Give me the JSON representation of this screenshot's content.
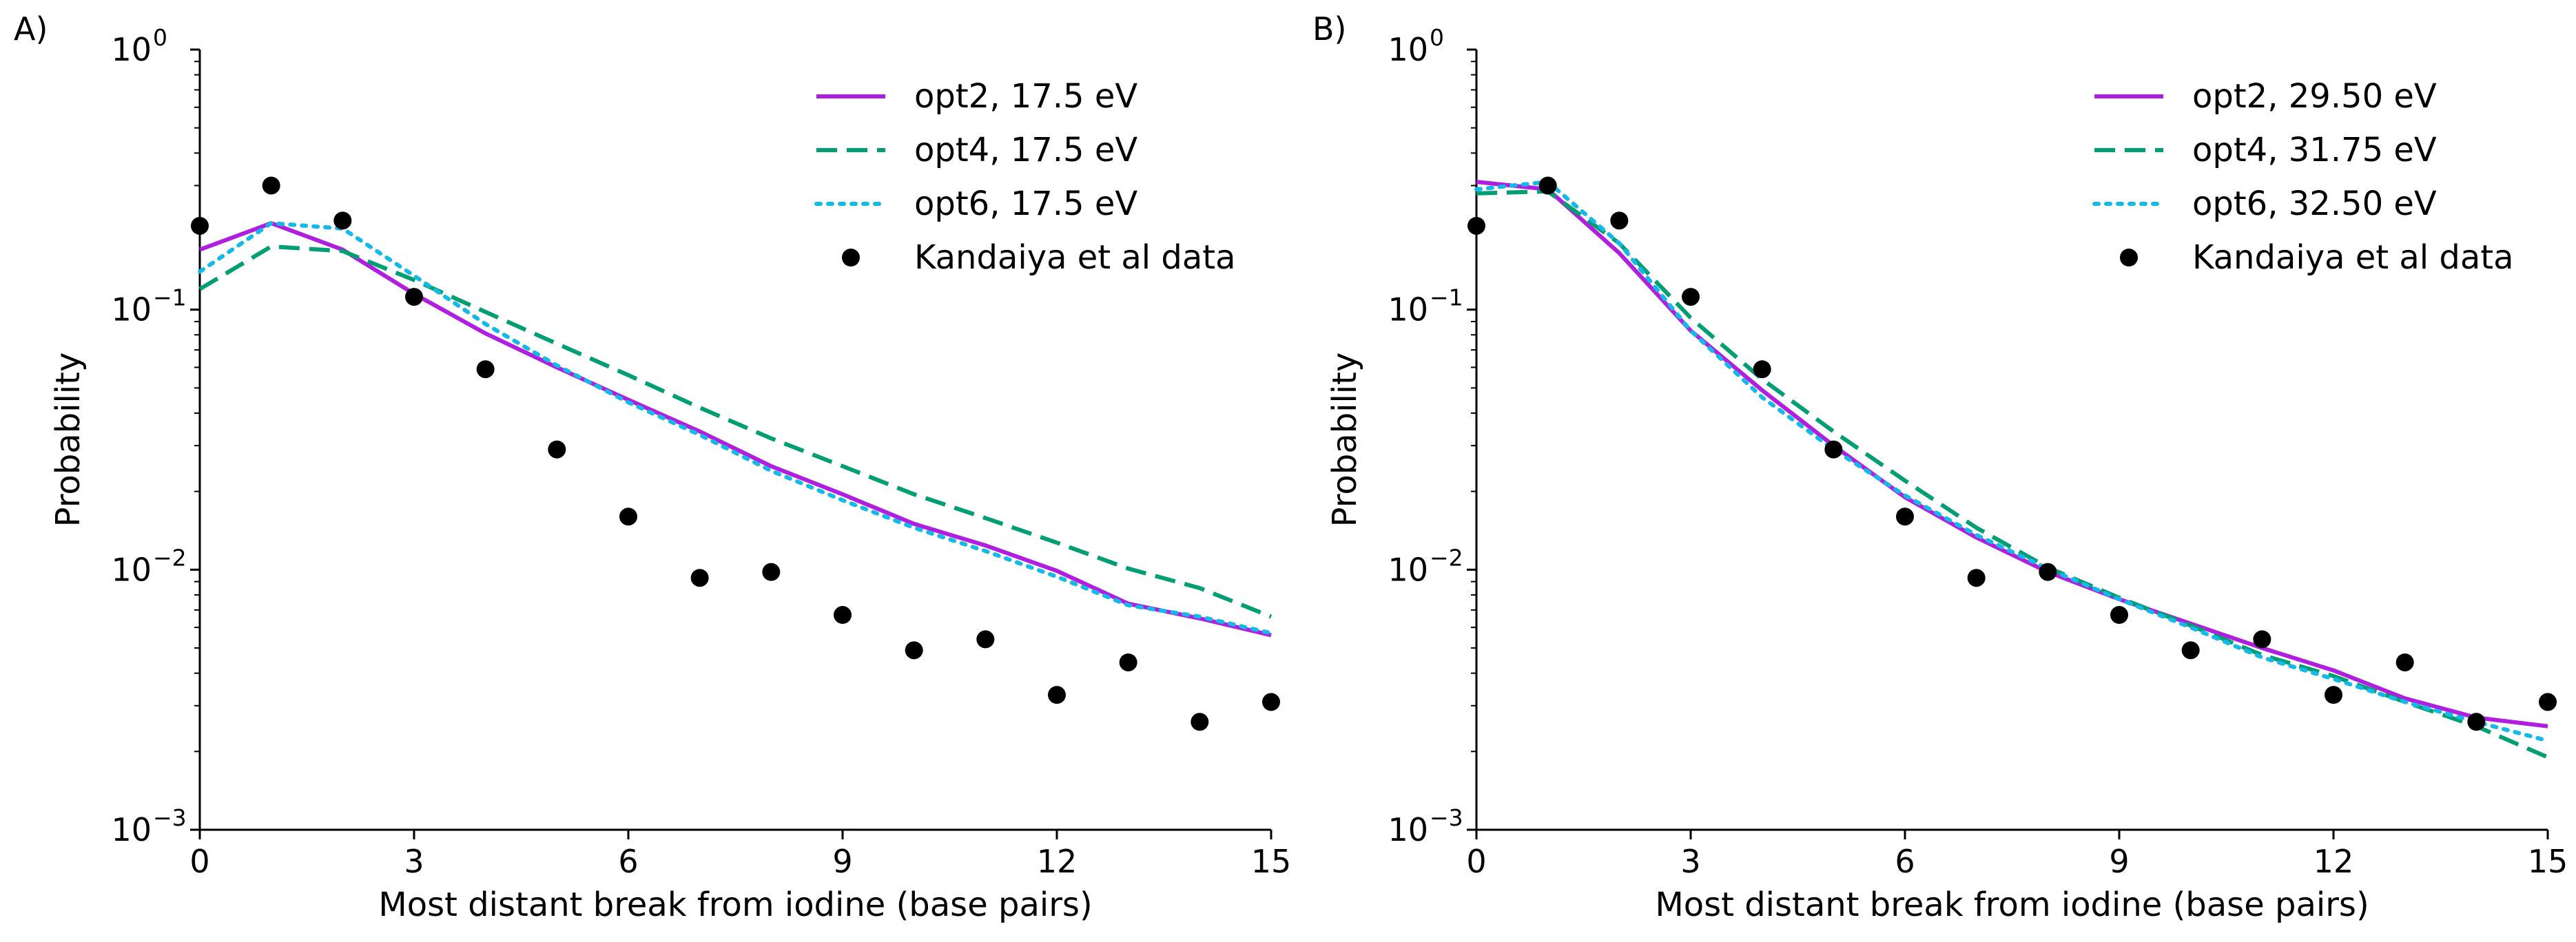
{
  "chart_data": [
    {
      "panel": "A)",
      "type": "line",
      "xlabel": "Most distant break from iodine (base pairs)",
      "ylabel": "Probability",
      "xlim": [
        0,
        15
      ],
      "ylim": [
        0.001,
        1
      ],
      "yscale": "log",
      "xticks": [
        0,
        3,
        6,
        9,
        12,
        15
      ],
      "xtick_labels": [
        "0",
        "3",
        "6",
        "9",
        "12",
        "15"
      ],
      "yticks": [
        1,
        0.1,
        0.01,
        0.001
      ],
      "ytick_labels": [
        {
          "base": "10",
          "exp": "0"
        },
        {
          "base": "10",
          "exp": "−1"
        },
        {
          "base": "10",
          "exp": "−2"
        },
        {
          "base": "10",
          "exp": "−3"
        }
      ],
      "legend_position": "upper right",
      "x": [
        0,
        1,
        2,
        3,
        4,
        5,
        6,
        7,
        8,
        9,
        10,
        11,
        12,
        13,
        14,
        15
      ],
      "series": [
        {
          "name": "opt2, 17.5 eV",
          "color": "#b01ee0",
          "style": "solid",
          "values": [
            0.17,
            0.215,
            0.17,
            0.115,
            0.081,
            0.06,
            0.045,
            0.034,
            0.025,
            0.0195,
            0.015,
            0.0124,
            0.0099,
            0.0074,
            0.0065,
            0.0056
          ]
        },
        {
          "name": "opt4, 17.5 eV",
          "color": "#009e73",
          "style": "dashed",
          "values": [
            0.12,
            0.175,
            0.168,
            0.13,
            0.098,
            0.074,
            0.056,
            0.042,
            0.032,
            0.025,
            0.0195,
            0.0158,
            0.0127,
            0.0101,
            0.0085,
            0.0066
          ]
        },
        {
          "name": "opt6, 17.5 eV",
          "color": "#13b9e8",
          "style": "dotted",
          "values": [
            0.14,
            0.215,
            0.205,
            0.135,
            0.088,
            0.061,
            0.044,
            0.033,
            0.024,
            0.0185,
            0.0145,
            0.0118,
            0.0094,
            0.0073,
            0.0066,
            0.0057
          ]
        },
        {
          "name": "Kandaiya et al data",
          "color": "#000000",
          "style": "scatter",
          "values": [
            0.21,
            0.3,
            0.22,
            0.112,
            0.059,
            0.029,
            0.016,
            0.0093,
            0.0098,
            0.0067,
            0.0049,
            0.0054,
            0.0033,
            0.0044,
            0.0026,
            0.0031
          ]
        }
      ]
    },
    {
      "panel": "B)",
      "type": "line",
      "xlabel": "Most distant break from iodine (base pairs)",
      "ylabel": "Probability",
      "xlim": [
        0,
        15
      ],
      "ylim": [
        0.001,
        1
      ],
      "yscale": "log",
      "xticks": [
        0,
        3,
        6,
        9,
        12,
        15
      ],
      "xtick_labels": [
        "0",
        "3",
        "6",
        "9",
        "12",
        "15"
      ],
      "yticks": [
        1,
        0.1,
        0.01,
        0.001
      ],
      "ytick_labels": [
        {
          "base": "10",
          "exp": "0"
        },
        {
          "base": "10",
          "exp": "−1"
        },
        {
          "base": "10",
          "exp": "−2"
        },
        {
          "base": "10",
          "exp": "−3"
        }
      ],
      "legend_position": "upper right",
      "x": [
        0,
        1,
        2,
        3,
        4,
        5,
        6,
        7,
        8,
        9,
        10,
        11,
        12,
        13,
        14,
        15
      ],
      "series": [
        {
          "name": "opt2, 29.50 eV",
          "color": "#b01ee0",
          "style": "solid",
          "values": [
            0.31,
            0.29,
            0.165,
            0.083,
            0.049,
            0.03,
            0.019,
            0.0133,
            0.0098,
            0.0077,
            0.0062,
            0.005,
            0.0041,
            0.0032,
            0.0027,
            0.0025
          ]
        },
        {
          "name": "opt4, 31.75 eV",
          "color": "#009e73",
          "style": "dashed",
          "values": [
            0.28,
            0.285,
            0.18,
            0.093,
            0.054,
            0.034,
            0.022,
            0.0145,
            0.0102,
            0.0078,
            0.0061,
            0.0047,
            0.0039,
            0.0031,
            0.0025,
            0.0019
          ]
        },
        {
          "name": "opt6, 32.50 eV",
          "color": "#13b9e8",
          "style": "dotted",
          "values": [
            0.29,
            0.31,
            0.18,
            0.083,
            0.046,
            0.029,
            0.0193,
            0.0136,
            0.0101,
            0.0077,
            0.006,
            0.0046,
            0.0038,
            0.0031,
            0.0026,
            0.0022
          ]
        },
        {
          "name": "Kandaiya et al data",
          "color": "#000000",
          "style": "scatter",
          "values": [
            0.21,
            0.3,
            0.22,
            0.112,
            0.059,
            0.029,
            0.016,
            0.0093,
            0.0098,
            0.0067,
            0.0049,
            0.0054,
            0.0033,
            0.0044,
            0.0026,
            0.0031
          ]
        }
      ]
    }
  ]
}
